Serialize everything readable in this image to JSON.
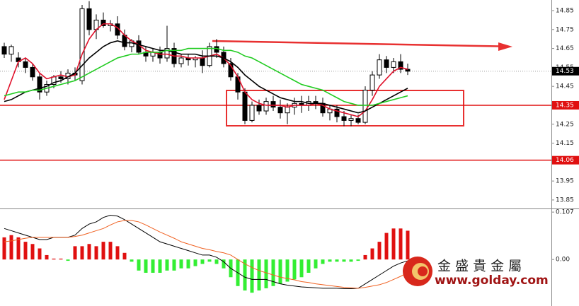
{
  "chart_data": [
    {
      "type": "candlestick",
      "ylim": [
        13.805,
        14.906
      ],
      "yticks": [
        14.85,
        14.75,
        14.65,
        14.55,
        14.45,
        14.35,
        14.25,
        14.15,
        14.05,
        13.95,
        13.85
      ],
      "up_color": "#ffffff",
      "down_color": "#000000",
      "ohlc": [
        [
          14.66,
          14.68,
          14.6,
          14.62
        ],
        [
          14.62,
          14.67,
          14.58,
          14.66
        ],
        [
          14.6,
          14.63,
          14.55,
          14.58
        ],
        [
          14.58,
          14.6,
          14.52,
          14.55
        ],
        [
          14.55,
          14.57,
          14.48,
          14.5
        ],
        [
          14.5,
          14.52,
          14.38,
          14.42
        ],
        [
          14.42,
          14.48,
          14.4,
          14.46
        ],
        [
          14.46,
          14.51,
          14.44,
          14.5
        ],
        [
          14.5,
          14.53,
          14.47,
          14.49
        ],
        [
          14.49,
          14.54,
          14.46,
          14.52
        ],
        [
          14.52,
          14.55,
          14.48,
          14.51
        ],
        [
          14.48,
          14.88,
          14.46,
          14.86
        ],
        [
          14.86,
          14.9,
          14.72,
          14.75
        ],
        [
          14.75,
          14.83,
          14.7,
          14.8
        ],
        [
          14.8,
          14.84,
          14.76,
          14.77
        ],
        [
          14.77,
          14.8,
          14.74,
          14.78
        ],
        [
          14.78,
          14.82,
          14.7,
          14.72
        ],
        [
          14.72,
          14.75,
          14.64,
          14.66
        ],
        [
          14.66,
          14.7,
          14.63,
          14.69
        ],
        [
          14.69,
          14.72,
          14.62,
          14.63
        ],
        [
          14.63,
          14.66,
          14.58,
          14.61
        ],
        [
          14.61,
          14.65,
          14.58,
          14.63
        ],
        [
          14.63,
          14.66,
          14.57,
          14.6
        ],
        [
          14.6,
          14.77,
          14.58,
          14.65
        ],
        [
          14.65,
          14.68,
          14.55,
          14.57
        ],
        [
          14.57,
          14.62,
          14.55,
          14.6
        ],
        [
          14.6,
          14.62,
          14.56,
          14.59
        ],
        [
          14.59,
          14.61,
          14.55,
          14.6
        ],
        [
          14.6,
          14.64,
          14.52,
          14.56
        ],
        [
          14.56,
          14.68,
          14.55,
          14.66
        ],
        [
          14.66,
          14.7,
          14.6,
          14.63
        ],
        [
          14.63,
          14.66,
          14.55,
          14.57
        ],
        [
          14.57,
          14.6,
          14.48,
          14.5
        ],
        [
          14.5,
          14.52,
          14.38,
          14.42
        ],
        [
          14.42,
          14.44,
          14.25,
          14.27
        ],
        [
          14.27,
          14.37,
          14.26,
          14.35
        ],
        [
          14.35,
          14.38,
          14.3,
          14.32
        ],
        [
          14.32,
          14.39,
          14.3,
          14.37
        ],
        [
          14.37,
          14.4,
          14.32,
          14.34
        ],
        [
          14.34,
          14.38,
          14.28,
          14.31
        ],
        [
          14.31,
          14.36,
          14.25,
          14.34
        ],
        [
          14.34,
          14.39,
          14.3,
          14.36
        ],
        [
          14.36,
          14.4,
          14.31,
          14.35
        ],
        [
          14.35,
          14.4,
          14.32,
          14.37
        ],
        [
          14.37,
          14.4,
          14.33,
          14.36
        ],
        [
          14.36,
          14.39,
          14.29,
          14.31
        ],
        [
          14.31,
          14.35,
          14.27,
          14.33
        ],
        [
          14.33,
          14.35,
          14.26,
          14.29
        ],
        [
          14.29,
          14.32,
          14.24,
          14.27
        ],
        [
          14.27,
          14.3,
          14.24,
          14.28
        ],
        [
          14.28,
          14.3,
          14.25,
          14.26
        ],
        [
          14.26,
          14.45,
          14.25,
          14.43
        ],
        [
          14.43,
          14.53,
          14.4,
          14.51
        ],
        [
          14.51,
          14.62,
          14.49,
          14.59
        ],
        [
          14.59,
          14.61,
          14.52,
          14.55
        ],
        [
          14.55,
          14.6,
          14.52,
          14.58
        ],
        [
          14.58,
          14.62,
          14.52,
          14.54
        ],
        [
          14.54,
          14.57,
          14.51,
          14.53
        ]
      ],
      "lines": [
        {
          "color": "#e0102a",
          "values": [
            14.38,
            14.48,
            14.58,
            14.6,
            14.57,
            14.52,
            14.49,
            14.5,
            14.51,
            14.5,
            14.51,
            14.62,
            14.7,
            14.75,
            14.78,
            14.78,
            14.76,
            14.72,
            14.69,
            14.67,
            14.64,
            14.63,
            14.62,
            14.62,
            14.61,
            14.61,
            14.6,
            14.6,
            14.6,
            14.61,
            14.62,
            14.6,
            14.56,
            14.5,
            14.42,
            14.38,
            14.36,
            14.35,
            14.35,
            14.35,
            14.34,
            14.35,
            14.35,
            14.35,
            14.36,
            14.35,
            14.33,
            14.32,
            14.31,
            14.3,
            14.29,
            14.32,
            14.38,
            14.45,
            14.49,
            14.53,
            14.55,
            14.54
          ]
        },
        {
          "color": "#000000",
          "values": [
            14.37,
            14.38,
            14.4,
            14.42,
            14.43,
            14.44,
            14.45,
            14.47,
            14.48,
            14.5,
            14.52,
            14.56,
            14.6,
            14.63,
            14.66,
            14.68,
            14.69,
            14.68,
            14.68,
            14.67,
            14.66,
            14.65,
            14.64,
            14.64,
            14.63,
            14.62,
            14.62,
            14.62,
            14.61,
            14.61,
            14.61,
            14.6,
            14.58,
            14.55,
            14.51,
            14.48,
            14.45,
            14.43,
            14.41,
            14.39,
            14.38,
            14.37,
            14.37,
            14.36,
            14.36,
            14.36,
            14.35,
            14.34,
            14.33,
            14.32,
            14.31,
            14.32,
            14.34,
            14.36,
            14.38,
            14.4,
            14.42,
            14.44
          ]
        },
        {
          "color": "#22cc22",
          "values": [
            14.4,
            14.41,
            14.42,
            14.42,
            14.43,
            14.43,
            14.44,
            14.45,
            14.46,
            14.47,
            14.48,
            14.5,
            14.52,
            14.54,
            14.56,
            14.58,
            14.6,
            14.61,
            14.62,
            14.62,
            14.63,
            14.63,
            14.63,
            14.64,
            14.64,
            14.64,
            14.65,
            14.65,
            14.65,
            14.65,
            14.65,
            14.64,
            14.64,
            14.63,
            14.61,
            14.6,
            14.58,
            14.56,
            14.54,
            14.52,
            14.5,
            14.48,
            14.46,
            14.45,
            14.44,
            14.43,
            14.41,
            14.39,
            14.37,
            14.36,
            14.35,
            14.35,
            14.35,
            14.36,
            14.37,
            14.38,
            14.39,
            14.4
          ]
        }
      ],
      "levels": [
        {
          "value": 14.35,
          "color": "#e01010"
        },
        {
          "value": 14.06,
          "color": "#e01010"
        }
      ],
      "last_price": 14.53
    },
    {
      "type": "macd",
      "ylim": [
        -0.105,
        0.112
      ],
      "yticks": [
        0.107,
        {
          "value": 0,
          "label": "0.00"
        }
      ],
      "pos_color": "#e01010",
      "neg_color": "#33ee33",
      "macd_color": "#000000",
      "signal_color": "#f06020",
      "histogram": [
        0.05,
        0.055,
        0.05,
        0.04,
        0.035,
        0.025,
        0.01,
        0.002,
        0.002,
        -0.003,
        0.03,
        0.03,
        0.035,
        0.03,
        0.04,
        0.04,
        0.03,
        0.015,
        -0.005,
        -0.025,
        -0.03,
        -0.03,
        -0.03,
        -0.025,
        -0.025,
        -0.02,
        -0.02,
        -0.015,
        -0.01,
        -0.005,
        -0.01,
        -0.02,
        -0.04,
        -0.06,
        -0.07,
        -0.075,
        -0.07,
        -0.065,
        -0.06,
        -0.055,
        -0.05,
        -0.045,
        -0.04,
        -0.03,
        -0.02,
        -0.01,
        -0.005,
        -0.005,
        -0.005,
        -0.005,
        -0.003,
        0.01,
        0.025,
        0.04,
        0.06,
        0.07,
        0.07,
        0.065
      ],
      "macd": [
        0.07,
        0.065,
        0.06,
        0.055,
        0.05,
        0.045,
        0.045,
        0.05,
        0.05,
        0.05,
        0.055,
        0.07,
        0.08,
        0.085,
        0.095,
        0.1,
        0.098,
        0.09,
        0.08,
        0.07,
        0.06,
        0.05,
        0.04,
        0.035,
        0.03,
        0.025,
        0.02,
        0.015,
        0.01,
        0.01,
        0.005,
        -0.005,
        -0.02,
        -0.03,
        -0.04,
        -0.045,
        -0.045,
        -0.045,
        -0.05,
        -0.055,
        -0.058,
        -0.06,
        -0.062,
        -0.063,
        -0.064,
        -0.065,
        -0.065,
        -0.065,
        -0.066,
        -0.066,
        -0.065,
        -0.055,
        -0.045,
        -0.035,
        -0.025,
        -0.015,
        -0.008,
        -0.003
      ],
      "signal": [
        0.04,
        0.042,
        0.045,
        0.048,
        0.05,
        0.05,
        0.05,
        0.05,
        0.05,
        0.05,
        0.052,
        0.055,
        0.06,
        0.065,
        0.07,
        0.078,
        0.085,
        0.088,
        0.088,
        0.085,
        0.078,
        0.07,
        0.062,
        0.055,
        0.048,
        0.04,
        0.035,
        0.03,
        0.025,
        0.022,
        0.018,
        0.015,
        0.01,
        0.0,
        -0.01,
        -0.018,
        -0.025,
        -0.03,
        -0.035,
        -0.04,
        -0.043,
        -0.046,
        -0.05,
        -0.052,
        -0.055,
        -0.057,
        -0.059,
        -0.061,
        -0.063,
        -0.064,
        -0.065,
        -0.063,
        -0.06,
        -0.057,
        -0.052,
        -0.045,
        -0.038,
        -0.03
      ]
    }
  ],
  "watermark": {
    "name": "金 盛 貴 金 屬",
    "url": "www.golday.com"
  }
}
